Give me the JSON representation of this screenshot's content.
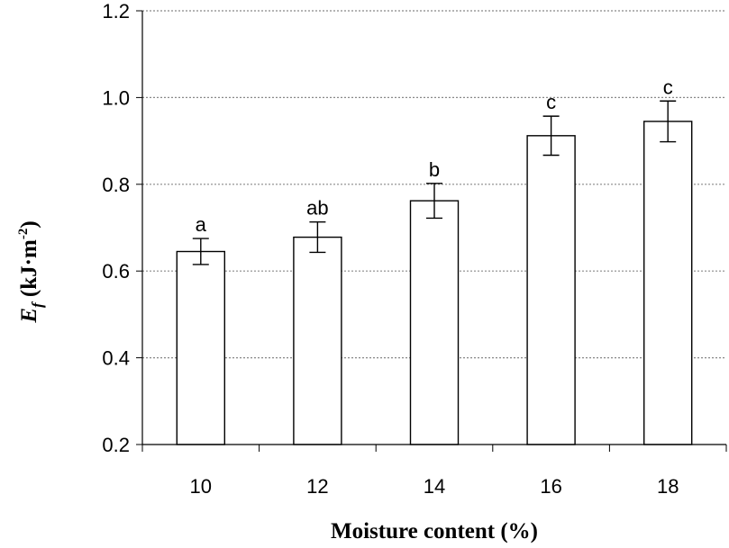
{
  "chart_data": {
    "type": "bar",
    "categories": [
      "10",
      "12",
      "14",
      "16",
      "18"
    ],
    "values": [
      0.645,
      0.678,
      0.762,
      0.912,
      0.945
    ],
    "errors": [
      0.03,
      0.035,
      0.04,
      0.045,
      0.047
    ],
    "significance_labels": [
      "a",
      "ab",
      "b",
      "c",
      "c"
    ],
    "title": "",
    "xlabel": "Moisture content (%)",
    "ylabel_main": "E",
    "ylabel_sub": "f",
    "ylabel_unit": " (kJ·m",
    "ylabel_sup": "-2",
    "ylabel_close": ")",
    "ylim": [
      0.2,
      1.2
    ],
    "yticks": [
      "0.2",
      "0.4",
      "0.6",
      "0.8",
      "1.0",
      "1.2"
    ],
    "grid": true,
    "colors": {
      "bar_fill": "#ffffff",
      "bar_stroke": "#000000",
      "grid": "#888888",
      "error_bar": "#000000"
    }
  }
}
